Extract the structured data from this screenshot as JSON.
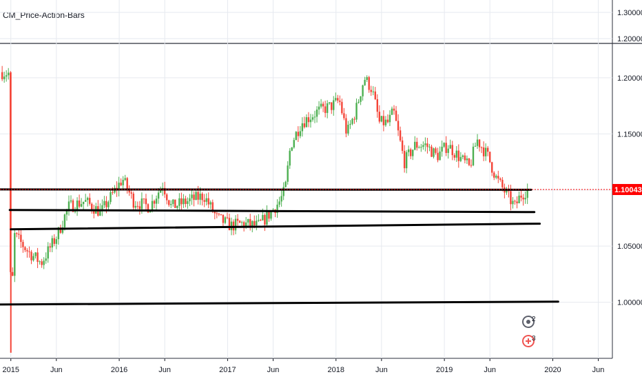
{
  "indicator_pane": {
    "title": "CM_Price-Action-Bars",
    "y_ticks": [
      "1.30000",
      "1.20000"
    ]
  },
  "current_price": {
    "label": "1.10043",
    "value": 1.10043,
    "color": "#ff0000"
  },
  "event_badges": [
    {
      "icon": "dividend-event-icon",
      "count": "2"
    },
    {
      "icon": "earnings-event-icon",
      "count": "3"
    }
  ],
  "colors": {
    "up": "#26a69a",
    "down": "#ef5350",
    "bull_bar": "#4caf50",
    "bear_bar": "#f44336",
    "trendline": "#000000",
    "grid": "#e6e9ef"
  },
  "chart_data": {
    "type": "candlestick",
    "title": "",
    "xlabel": "",
    "ylabel": "",
    "x_ticks": [
      "2015",
      "Jun",
      "2016",
      "Jun",
      "2017",
      "Jun",
      "2018",
      "Jun",
      "2019",
      "Jun",
      "2020",
      "Jun"
    ],
    "y_ticks": [
      1.2,
      1.15,
      1.1,
      1.05,
      1.0
    ],
    "y_tick_labels": [
      "1.20000",
      "1.15000",
      "1.10000",
      "1.05000",
      "1.00000"
    ],
    "ylim": [
      0.95,
      1.23
    ],
    "xlim": [
      2014.9,
      2020.55
    ],
    "grid": true,
    "scale": "linear",
    "anchors": [
      [
        2014.92,
        1.205
      ],
      [
        2015.0,
        1.204
      ],
      [
        2015.02,
        0.98
      ],
      [
        2015.05,
        1.06
      ],
      [
        2015.18,
        1.045
      ],
      [
        2015.3,
        1.035
      ],
      [
        2015.45,
        1.06
      ],
      [
        2015.55,
        1.085
      ],
      [
        2015.7,
        1.09
      ],
      [
        2015.85,
        1.08
      ],
      [
        2015.95,
        1.095
      ],
      [
        2016.05,
        1.11
      ],
      [
        2016.15,
        1.09
      ],
      [
        2016.3,
        1.085
      ],
      [
        2016.42,
        1.105
      ],
      [
        2016.5,
        1.085
      ],
      [
        2016.65,
        1.09
      ],
      [
        2016.8,
        1.095
      ],
      [
        2016.92,
        1.075
      ],
      [
        2017.05,
        1.068
      ],
      [
        2017.15,
        1.07
      ],
      [
        2017.3,
        1.068
      ],
      [
        2017.4,
        1.078
      ],
      [
        2017.5,
        1.09
      ],
      [
        2017.55,
        1.1
      ],
      [
        2017.6,
        1.14
      ],
      [
        2017.7,
        1.16
      ],
      [
        2017.85,
        1.17
      ],
      [
        2017.98,
        1.175
      ],
      [
        2018.05,
        1.18
      ],
      [
        2018.12,
        1.15
      ],
      [
        2018.2,
        1.17
      ],
      [
        2018.28,
        1.2
      ],
      [
        2018.35,
        1.19
      ],
      [
        2018.42,
        1.16
      ],
      [
        2018.5,
        1.16
      ],
      [
        2018.55,
        1.17
      ],
      [
        2018.65,
        1.125
      ],
      [
        2018.75,
        1.14
      ],
      [
        2018.85,
        1.14
      ],
      [
        2018.95,
        1.13
      ],
      [
        2019.05,
        1.14
      ],
      [
        2019.15,
        1.13
      ],
      [
        2019.25,
        1.12
      ],
      [
        2019.32,
        1.145
      ],
      [
        2019.42,
        1.13
      ],
      [
        2019.5,
        1.11
      ],
      [
        2019.6,
        1.095
      ],
      [
        2019.67,
        1.085
      ],
      [
        2019.72,
        1.095
      ],
      [
        2019.78,
        1.1
      ]
    ],
    "trendlines": [
      {
        "x1": 2014.9,
        "y1": 1.1005,
        "x2": 2019.8,
        "y2": 1.1002
      },
      {
        "x1": 2014.99,
        "y1": 1.0822,
        "x2": 2019.83,
        "y2": 1.0803
      },
      {
        "x1": 2015.0,
        "y1": 1.065,
        "x2": 2019.88,
        "y2": 1.07
      },
      {
        "x1": 2014.9,
        "y1": 0.998,
        "x2": 2020.05,
        "y2": 1.0005
      }
    ]
  }
}
